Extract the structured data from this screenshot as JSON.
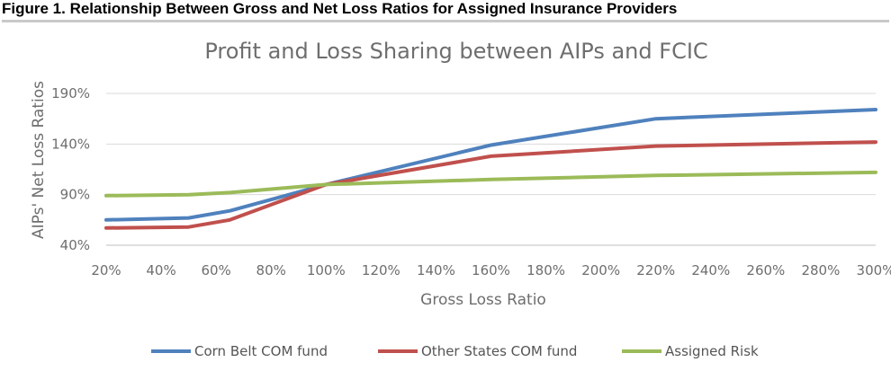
{
  "figure_title": "Figure 1. Relationship Between Gross and Net Loss Ratios for Assigned Insurance Providers",
  "chart_data": {
    "type": "line",
    "title": "Profit and Loss Sharing between AIPs and FCIC",
    "xlabel": "Gross Loss Ratio",
    "ylabel": "AIPs' Net Loss Ratios",
    "x": [
      0.2,
      0.5,
      0.65,
      1.0,
      1.6,
      2.2,
      3.0
    ],
    "x_ticks": [
      "20%",
      "40%",
      "60%",
      "80%",
      "100%",
      "120%",
      "140%",
      "160%",
      "180%",
      "200%",
      "220%",
      "240%",
      "260%",
      "280%",
      "300%"
    ],
    "y_ticks": [
      "40%",
      "90%",
      "140%",
      "190%"
    ],
    "xlim": [
      0.2,
      3.0
    ],
    "ylim": [
      0.4,
      1.9
    ],
    "grid": true,
    "legend_position": "bottom",
    "series": [
      {
        "name": "Corn Belt COM fund",
        "color": "#4f81bd",
        "values": [
          0.65,
          0.67,
          0.74,
          1.0,
          1.39,
          1.65,
          1.74
        ]
      },
      {
        "name": "Other States COM fund",
        "color": "#c0504d",
        "values": [
          0.57,
          0.58,
          0.65,
          1.0,
          1.28,
          1.38,
          1.42
        ]
      },
      {
        "name": "Assigned Risk",
        "color": "#9bbb59",
        "values": [
          0.89,
          0.9,
          0.92,
          1.0,
          1.05,
          1.09,
          1.12
        ]
      }
    ]
  }
}
